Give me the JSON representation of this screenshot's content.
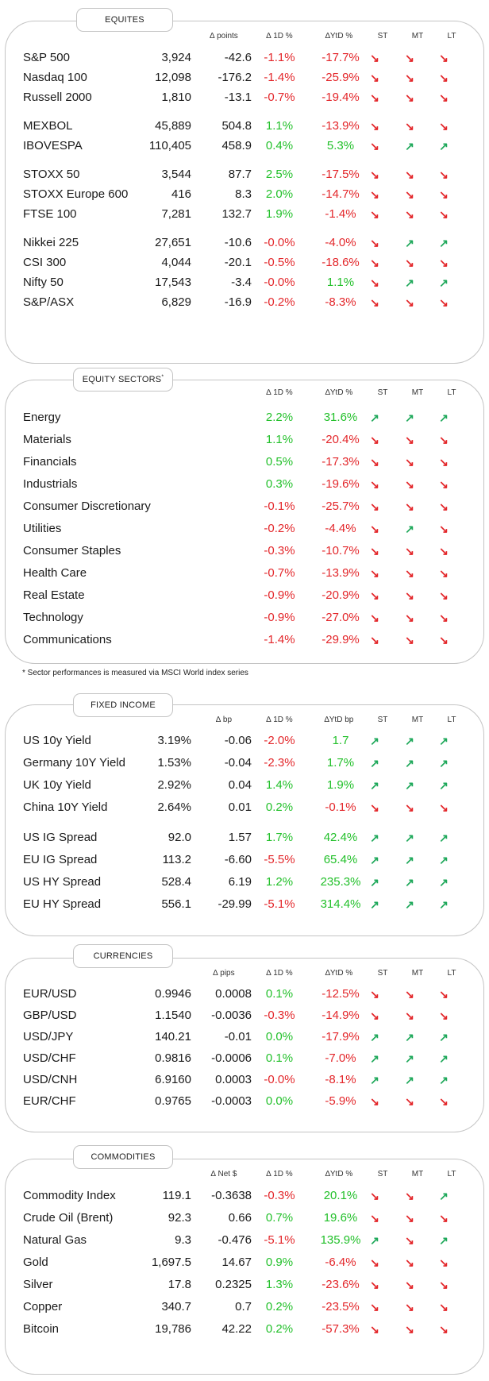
{
  "colors": {
    "positive": "#22c02a",
    "negative": "#e3262a",
    "trend_up": "#1ea85a",
    "trend_down": "#e3262a",
    "border": "#c4c4c4"
  },
  "trend_headers": [
    "ST",
    "MT",
    "LT"
  ],
  "equities": {
    "title": "EQUITES",
    "col_change": "∆ points",
    "col_1d": "∆ 1D %",
    "col_ytd": "∆YtD %",
    "rows": [
      {
        "name": "S&P 500",
        "value": "3,924",
        "change": "-42.6",
        "d1": "-1.1%",
        "ytd": "-17.7%",
        "st": "down",
        "mt": "down",
        "lt": "down"
      },
      {
        "name": "Nasdaq 100",
        "value": "12,098",
        "change": "-176.2",
        "d1": "-1.4%",
        "ytd": "-25.9%",
        "st": "down",
        "mt": "down",
        "lt": "down"
      },
      {
        "name": "Russell 2000",
        "value": "1,810",
        "change": "-13.1",
        "d1": "-0.7%",
        "ytd": "-19.4%",
        "st": "down",
        "mt": "down",
        "lt": "down"
      },
      {
        "name": "MEXBOL",
        "value": "45,889",
        "change": "504.8",
        "d1": "1.1%",
        "ytd": "-13.9%",
        "st": "down",
        "mt": "down",
        "lt": "down"
      },
      {
        "name": "IBOVESPA",
        "value": "110,405",
        "change": "458.9",
        "d1": "0.4%",
        "ytd": "5.3%",
        "st": "down",
        "mt": "up",
        "lt": "up"
      },
      {
        "name": "STOXX 50",
        "value": "3,544",
        "change": "87.7",
        "d1": "2.5%",
        "ytd": "-17.5%",
        "st": "down",
        "mt": "down",
        "lt": "down"
      },
      {
        "name": "STOXX Europe 600",
        "value": "416",
        "change": "8.3",
        "d1": "2.0%",
        "ytd": "-14.7%",
        "st": "down",
        "mt": "down",
        "lt": "down"
      },
      {
        "name": "FTSE 100",
        "value": "7,281",
        "change": "132.7",
        "d1": "1.9%",
        "ytd": "-1.4%",
        "st": "down",
        "mt": "down",
        "lt": "down"
      },
      {
        "name": "Nikkei 225",
        "value": "27,651",
        "change": "-10.6",
        "d1": "-0.0%",
        "ytd": "-4.0%",
        "st": "down",
        "mt": "up",
        "lt": "up"
      },
      {
        "name": "CSI 300",
        "value": "4,044",
        "change": "-20.1",
        "d1": "-0.5%",
        "ytd": "-18.6%",
        "st": "down",
        "mt": "down",
        "lt": "down"
      },
      {
        "name": "Nifty  50",
        "value": "17,543",
        "change": "-3.4",
        "d1": "-0.0%",
        "ytd": "1.1%",
        "st": "down",
        "mt": "up",
        "lt": "up"
      },
      {
        "name": "S&P/ASX",
        "value": "6,829",
        "change": "-16.9",
        "d1": "-0.2%",
        "ytd": "-8.3%",
        "st": "down",
        "mt": "down",
        "lt": "down"
      }
    ]
  },
  "sectors": {
    "title": "EQUITY SECTORS",
    "title_mark": "*",
    "col_1d": "∆ 1D %",
    "col_ytd": "∆YtD %",
    "rows": [
      {
        "name": "Energy",
        "d1": "2.2%",
        "ytd": "31.6%",
        "st": "up",
        "mt": "up",
        "lt": "up"
      },
      {
        "name": "Materials",
        "d1": "1.1%",
        "ytd": "-20.4%",
        "st": "down",
        "mt": "down",
        "lt": "down"
      },
      {
        "name": "Financials",
        "d1": "0.5%",
        "ytd": "-17.3%",
        "st": "down",
        "mt": "down",
        "lt": "down"
      },
      {
        "name": "Industrials",
        "d1": "0.3%",
        "ytd": "-19.6%",
        "st": "down",
        "mt": "down",
        "lt": "down"
      },
      {
        "name": "Consumer Discretionary",
        "d1": "-0.1%",
        "ytd": "-25.7%",
        "st": "down",
        "mt": "down",
        "lt": "down"
      },
      {
        "name": "Utilities",
        "d1": "-0.2%",
        "ytd": "-4.4%",
        "st": "down",
        "mt": "up",
        "lt": "down"
      },
      {
        "name": "Consumer Staples",
        "d1": "-0.3%",
        "ytd": "-10.7%",
        "st": "down",
        "mt": "down",
        "lt": "down"
      },
      {
        "name": "Health Care",
        "d1": "-0.7%",
        "ytd": "-13.9%",
        "st": "down",
        "mt": "down",
        "lt": "down"
      },
      {
        "name": "Real Estate",
        "d1": "-0.9%",
        "ytd": "-20.9%",
        "st": "down",
        "mt": "down",
        "lt": "down"
      },
      {
        "name": "Technology",
        "d1": "-0.9%",
        "ytd": "-27.0%",
        "st": "down",
        "mt": "down",
        "lt": "down"
      },
      {
        "name": "Communications",
        "d1": "-1.4%",
        "ytd": "-29.9%",
        "st": "down",
        "mt": "down",
        "lt": "down"
      }
    ],
    "footnote": "* Sector performances is measured via MSCI World index series"
  },
  "fixed_income": {
    "title": "FIXED INCOME",
    "col_change": "∆ bp",
    "col_1d": "∆ 1D %",
    "col_ytd": "∆YtD bp",
    "rows": [
      {
        "name": "US 10y Yield",
        "value": "3.19%",
        "change": "-0.06",
        "d1": "-2.0%",
        "ytd": "1.7",
        "st": "up",
        "mt": "up",
        "lt": "up"
      },
      {
        "name": "Germany 10Y Yield",
        "value": "1.53%",
        "change": "-0.04",
        "d1": "-2.3%",
        "ytd": "1.7%",
        "st": "up",
        "mt": "up",
        "lt": "up"
      },
      {
        "name": "UK 10y Yield",
        "value": "2.92%",
        "change": "0.04",
        "d1": "1.4%",
        "ytd": "1.9%",
        "st": "up",
        "mt": "up",
        "lt": "up"
      },
      {
        "name": "China 10Y Yield",
        "value": "2.64%",
        "change": "0.01",
        "d1": "0.2%",
        "ytd": "-0.1%",
        "st": "down",
        "mt": "down",
        "lt": "down"
      },
      {
        "name": "US IG Spread",
        "value": "92.0",
        "change": "1.57",
        "d1": "1.7%",
        "ytd": "42.4%",
        "st": "up",
        "mt": "up",
        "lt": "up"
      },
      {
        "name": "EU IG Spread",
        "value": "113.2",
        "change": "-6.60",
        "d1": "-5.5%",
        "ytd": "65.4%",
        "st": "up",
        "mt": "up",
        "lt": "up"
      },
      {
        "name": "US HY Spread",
        "value": "528.4",
        "change": "6.19",
        "d1": "1.2%",
        "ytd": "235.3%",
        "st": "up",
        "mt": "up",
        "lt": "up"
      },
      {
        "name": "EU HY Spread",
        "value": "556.1",
        "change": "-29.99",
        "d1": "-5.1%",
        "ytd": "314.4%",
        "st": "up",
        "mt": "up",
        "lt": "up"
      }
    ]
  },
  "currencies": {
    "title": "CURRENCIES",
    "col_change": "∆ pips",
    "col_1d": "∆ 1D %",
    "col_ytd": "∆YtD %",
    "rows": [
      {
        "name": "EUR/USD",
        "value": "0.9946",
        "change": "0.0008",
        "d1": "0.1%",
        "ytd": "-12.5%",
        "st": "down",
        "mt": "down",
        "lt": "down"
      },
      {
        "name": "GBP/USD",
        "value": "1.1540",
        "change": "-0.0036",
        "d1": "-0.3%",
        "ytd": "-14.9%",
        "st": "down",
        "mt": "down",
        "lt": "down"
      },
      {
        "name": "USD/JPY",
        "value": "140.21",
        "change": "-0.01",
        "d1": "0.0%",
        "ytd": "-17.9%",
        "st": "up",
        "mt": "up",
        "lt": "up"
      },
      {
        "name": "USD/CHF",
        "value": "0.9816",
        "change": "-0.0006",
        "d1": "0.1%",
        "ytd": "-7.0%",
        "st": "up",
        "mt": "up",
        "lt": "up"
      },
      {
        "name": "USD/CNH",
        "value": "6.9160",
        "change": "0.0003",
        "d1": "-0.0%",
        "ytd": "-8.1%",
        "st": "up",
        "mt": "up",
        "lt": "up"
      },
      {
        "name": "EUR/CHF",
        "value": "0.9765",
        "change": "-0.0003",
        "d1": "0.0%",
        "ytd": "-5.9%",
        "st": "down",
        "mt": "down",
        "lt": "down"
      }
    ]
  },
  "commodities": {
    "title": "COMMODITIES",
    "col_change": "∆ Net $",
    "col_1d": "∆ 1D %",
    "col_ytd": "∆YtD %",
    "rows": [
      {
        "name": "Commodity Index",
        "value": "119.1",
        "change": "-0.3638",
        "d1": "-0.3%",
        "ytd": "20.1%",
        "st": "down",
        "mt": "down",
        "lt": "up"
      },
      {
        "name": "Crude Oil (Brent)",
        "value": "92.3",
        "change": "0.66",
        "d1": "0.7%",
        "ytd": "19.6%",
        "st": "down",
        "mt": "down",
        "lt": "down"
      },
      {
        "name": "Natural Gas",
        "value": "9.3",
        "change": "-0.476",
        "d1": "-5.1%",
        "ytd": "135.9%",
        "st": "up",
        "mt": "down",
        "lt": "up"
      },
      {
        "name": "Gold",
        "value": "1,697.5",
        "change": "14.67",
        "d1": "0.9%",
        "ytd": "-6.4%",
        "st": "down",
        "mt": "down",
        "lt": "down"
      },
      {
        "name": "Silver",
        "value": "17.8",
        "change": "0.2325",
        "d1": "1.3%",
        "ytd": "-23.6%",
        "st": "down",
        "mt": "down",
        "lt": "down"
      },
      {
        "name": "Copper",
        "value": "340.7",
        "change": "0.7",
        "d1": "0.2%",
        "ytd": "-23.5%",
        "st": "down",
        "mt": "down",
        "lt": "down"
      },
      {
        "name": "Bitcoin",
        "value": "19,786",
        "change": "42.22",
        "d1": "0.2%",
        "ytd": "-57.3%",
        "st": "down",
        "mt": "down",
        "lt": "down"
      }
    ]
  }
}
